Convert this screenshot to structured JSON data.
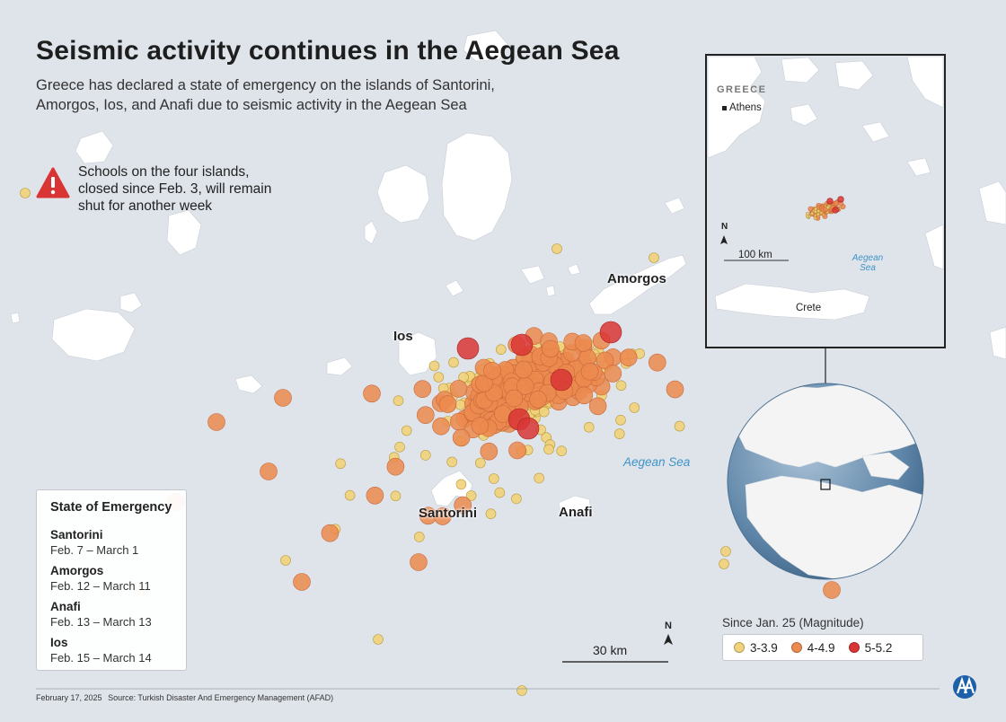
{
  "title": "Seismic activity continues in the Aegean Sea",
  "subtitle": "Greece has declared a state of emergency on the islands of Santorini, Amorgos, Ios, and Anafi due to seismic activity in the Aegean Sea",
  "alert": {
    "icon": "warning-triangle-icon",
    "text": "Schools on the four islands, closed since Feb. 3, will remain shut for another week"
  },
  "places": {
    "amorgos": "Amorgos",
    "ios": "Ios",
    "santorini": "Santorini",
    "anafi": "Anafi",
    "sea": "Aegean Sea"
  },
  "emergency": {
    "title": "State of Emergency",
    "items": [
      {
        "name": "Santorini",
        "dates": "Feb.  7 – March 1"
      },
      {
        "name": "Amorgos",
        "dates": "Feb. 12 – March 11"
      },
      {
        "name": "Anafi",
        "dates": "Feb. 13 – March 13"
      },
      {
        "name": "Ios",
        "dates": "Feb. 15 – March 14"
      }
    ]
  },
  "magnitude_legend": {
    "title": "Since Jan. 25 (Magnitude)",
    "classes": [
      {
        "label": "3-3.9",
        "color": "#f2d27a"
      },
      {
        "label": "4-4.9",
        "color": "#ec8a4f"
      },
      {
        "label": "5-5.2",
        "color": "#d93535"
      }
    ]
  },
  "scale": {
    "label": "30 km",
    "north": "N"
  },
  "inset": {
    "country": "GREECE",
    "city": "Athens",
    "island": "Crete",
    "sea": "Aegean Sea",
    "scale": "100 km",
    "north": "N"
  },
  "footer": {
    "date": "February 17, 2025",
    "source": "Source: Turkish Disaster And Emergency Management (AFAD)"
  },
  "colors": {
    "sea": "#dfe4eb",
    "land": "#ffffff",
    "alert": "#d93535",
    "sea_text": "#3f93c7"
  }
}
